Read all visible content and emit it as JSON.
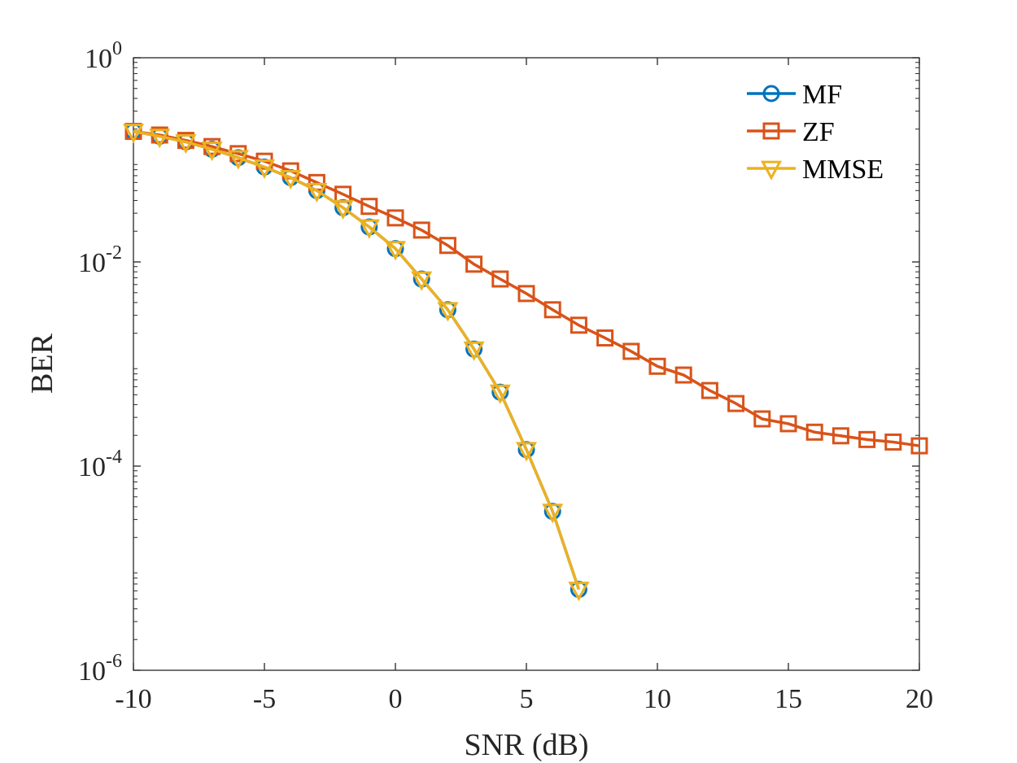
{
  "chart_data": {
    "type": "line",
    "title": "",
    "xlabel": "SNR (dB)",
    "ylabel": "BER",
    "xlim": [
      -10,
      20
    ],
    "ylim": [
      1e-06,
      1
    ],
    "yscale": "log",
    "grid": false,
    "legend_position": "top-right",
    "x_ticks": [
      -10,
      -5,
      0,
      5,
      10,
      15,
      20
    ],
    "x_tick_labels": [
      "-10",
      "-5",
      "0",
      "5",
      "10",
      "15",
      "20"
    ],
    "y_ticks": [
      1e-06,
      0.0001,
      0.01,
      1
    ],
    "y_tick_labels": [
      {
        "base": "10",
        "exp": "-6"
      },
      {
        "base": "10",
        "exp": "-4"
      },
      {
        "base": "10",
        "exp": "-2"
      },
      {
        "base": "10",
        "exp": "0"
      }
    ],
    "series": [
      {
        "name": "MF",
        "color": "#0072BD",
        "marker": "circle",
        "x": [
          -10,
          -9,
          -8,
          -7,
          -6,
          -5,
          -4,
          -3,
          -2,
          -1,
          0,
          1,
          2,
          3,
          4,
          5,
          6,
          7
        ],
        "y": [
          0.19,
          0.17,
          0.15,
          0.127,
          0.105,
          0.085,
          0.067,
          0.05,
          0.034,
          0.022,
          0.0135,
          0.0068,
          0.0034,
          0.0014,
          0.00053,
          0.000145,
          3.6e-05,
          6.2e-06
        ]
      },
      {
        "name": "ZF",
        "color": "#D95319",
        "marker": "square",
        "x": [
          -10,
          -9,
          -8,
          -7,
          -6,
          -5,
          -4,
          -3,
          -2,
          -1,
          0,
          1,
          2,
          3,
          4,
          5,
          6,
          7,
          8,
          9,
          10,
          11,
          12,
          13,
          14,
          15,
          16,
          17,
          18,
          19,
          20
        ],
        "y": [
          0.19,
          0.175,
          0.155,
          0.135,
          0.115,
          0.097,
          0.078,
          0.06,
          0.046,
          0.035,
          0.027,
          0.0205,
          0.0145,
          0.0095,
          0.0068,
          0.0049,
          0.0034,
          0.0024,
          0.0018,
          0.00133,
          0.00095,
          0.00078,
          0.00055,
          0.00041,
          0.00029,
          0.00026,
          0.000215,
          0.000198,
          0.000182,
          0.000172,
          0.000158
        ]
      },
      {
        "name": "MMSE",
        "color": "#EDB120",
        "marker": "triangle-down",
        "x": [
          -10,
          -9,
          -8,
          -7,
          -6,
          -5,
          -4,
          -3,
          -2,
          -1,
          0,
          1,
          2,
          3,
          4,
          5,
          6,
          7
        ],
        "y": [
          0.19,
          0.17,
          0.15,
          0.127,
          0.105,
          0.085,
          0.067,
          0.05,
          0.034,
          0.022,
          0.0135,
          0.0068,
          0.0034,
          0.0014,
          0.00053,
          0.000145,
          3.6e-05,
          6.2e-06
        ]
      }
    ]
  }
}
